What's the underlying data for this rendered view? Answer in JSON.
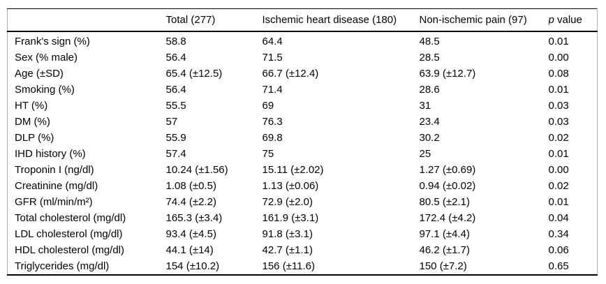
{
  "table": {
    "title_semantic": "clinical-characteristics-comparison-table",
    "header": {
      "col0": "",
      "col1": "Total (277)",
      "col2": "Ischemic heart disease (180)",
      "col3": "Non-ischemic pain (97)",
      "p_symbol": "p",
      "p_rest": " value"
    },
    "rows": [
      [
        "Frank's sign (%)",
        "58.8",
        "64.4",
        "48.5",
        "0.01"
      ],
      [
        "Sex (% male)",
        "56.4",
        "71.5",
        "28.5",
        "0.00"
      ],
      [
        "Age (±SD)",
        "65.4 (±12.5)",
        "66.7 (±12.4)",
        "63.9 (±12.7)",
        "0.08"
      ],
      [
        "Smoking (%)",
        "56.4",
        "71.4",
        "28.6",
        "0.01"
      ],
      [
        "HT (%)",
        "55.5",
        "69",
        "31",
        "0.03"
      ],
      [
        "DM (%)",
        "57",
        "76.3",
        "23.4",
        "0.03"
      ],
      [
        "DLP (%)",
        "55.9",
        "69.8",
        "30.2",
        "0.02"
      ],
      [
        "IHD history (%)",
        "57.4",
        "75",
        "25",
        "0.01"
      ],
      [
        "Troponin I (ng/dl)",
        "10.24 (±1.56)",
        "15.11 (±2.02)",
        "1.27 (±0.69)",
        "0.00"
      ],
      [
        "Creatinine (mg/dl)",
        "1.08 (±0.5)",
        "1.13 (±0.06)",
        "0.94 (±0.02)",
        "0.02"
      ],
      [
        "GFR (ml/min/m²)",
        "74.4 (±2.2)",
        "72.9 (±2.0)",
        "80.5 (±2.1)",
        "0.01"
      ],
      [
        "Total cholesterol (mg/dl)",
        "165.3 (±3.4)",
        "161.9 (±3.1)",
        "172.4 (±4.2)",
        "0.04"
      ],
      [
        "LDL cholesterol (mg/dl)",
        "93.4 (±4.5)",
        "91.8 (±3.1)",
        "97.1 (±4.4)",
        "0.34"
      ],
      [
        "HDL cholesterol (mg/dl)",
        "44.1 (±14)",
        "42.7 (±1.1)",
        "46.2 (±1.7)",
        "0.06"
      ],
      [
        "Triglycerides (mg/dl)",
        "154 (±10.2)",
        "156 (±11.6)",
        "150 (±7.2)",
        "0.65"
      ]
    ],
    "colors": {
      "text": "#000000",
      "rule_black": "#000000",
      "rule_gray": "#b0b0b0",
      "background": "#ffffff"
    }
  }
}
